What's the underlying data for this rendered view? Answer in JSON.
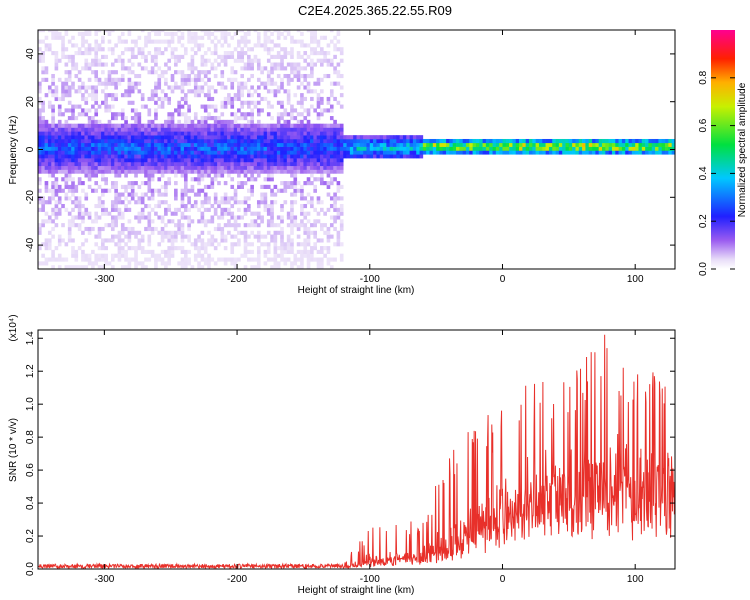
{
  "figure_title": "C2E4.2025.365.22.55.R09",
  "chart_data": [
    {
      "type": "heatmap",
      "title": "C2E4.2025.365.22.55.R09",
      "xlabel": "Height of straight line (km)",
      "ylabel": "Frequency (Hz)",
      "xlim": [
        -350,
        130
      ],
      "ylim": [
        -50,
        50
      ],
      "xticks": [
        -300,
        -200,
        -100,
        0,
        100
      ],
      "xtick_labels": [
        "-300",
        "-200",
        "-100",
        "0",
        "100"
      ],
      "yticks": [
        -40,
        -20,
        0,
        20,
        40
      ],
      "ytick_labels": [
        "-40",
        "-20",
        "0",
        "20",
        "40"
      ],
      "colorbar": {
        "label": "Normalized spectral amplitude",
        "range": [
          0,
          1
        ],
        "ticks": [
          0.0,
          0.2,
          0.4,
          0.6,
          0.8
        ],
        "tick_labels": [
          "0.0",
          "0.2",
          "0.4",
          "0.6",
          "0.8"
        ],
        "colormap": "rainbow (white-violet-blue-cyan-green-yellow-red-magenta)"
      },
      "description": "Broadband noise over -50..50 Hz for heights -350..-120 km; narrow band near 0 Hz strengthening to amplitude ~0.9 for heights above -30 km",
      "regions": [
        {
          "x_range": [
            -350,
            -120
          ],
          "band_center_hz": 0,
          "band_halfwidth_hz": 10,
          "peak_amplitude": 0.35,
          "scatter_extent_hz": 50
        },
        {
          "x_range": [
            -120,
            -60
          ],
          "band_center_hz": 0,
          "band_halfwidth_hz": 5,
          "peak_amplitude": 0.5,
          "scatter_extent_hz": 5
        },
        {
          "x_range": [
            -60,
            0
          ],
          "band_center_hz": 0.5,
          "band_halfwidth_hz": 3,
          "peak_amplitude": 0.85,
          "scatter_extent_hz": 3
        },
        {
          "x_range": [
            0,
            130
          ],
          "band_center_hz": 0.5,
          "band_halfwidth_hz": 3,
          "peak_amplitude": 0.9,
          "scatter_extent_hz": 3
        }
      ]
    },
    {
      "type": "line",
      "title": "",
      "xlabel": "Height of straight line (km)",
      "ylabel": "SNR (10 * v/v)",
      "y_multiplier_label": "(x10⁴)",
      "xlim": [
        -350,
        130
      ],
      "ylim": [
        0,
        1.45
      ],
      "xticks": [
        -300,
        -200,
        -100,
        0,
        100
      ],
      "xtick_labels": [
        "-300",
        "-200",
        "-100",
        "0",
        "100"
      ],
      "yticks": [
        0.0,
        0.2,
        0.4,
        0.6,
        0.8,
        1.0,
        1.2,
        1.4
      ],
      "ytick_labels": [
        "0.0",
        "0.2",
        "0.4",
        "0.6",
        "0.8",
        "1.0",
        "1.2",
        "1.4"
      ],
      "series": [
        {
          "name": "SNR",
          "color": "#e8302a",
          "envelope": {
            "x": [
              -350,
              -120,
              -100,
              -80,
              -60,
              -40,
              -20,
              0,
              20,
              40,
              60,
              80,
              100,
              120,
              130
            ],
            "baseline": [
              0.01,
              0.01,
              0.03,
              0.05,
              0.08,
              0.12,
              0.25,
              0.35,
              0.4,
              0.45,
              0.5,
              0.5,
              0.55,
              0.55,
              0.55
            ],
            "peak": [
              0.03,
              0.04,
              0.25,
              0.28,
              0.3,
              0.75,
              0.9,
              1.0,
              1.15,
              1.2,
              1.3,
              1.45,
              1.2,
              1.2,
              1.1
            ]
          }
        }
      ]
    }
  ]
}
